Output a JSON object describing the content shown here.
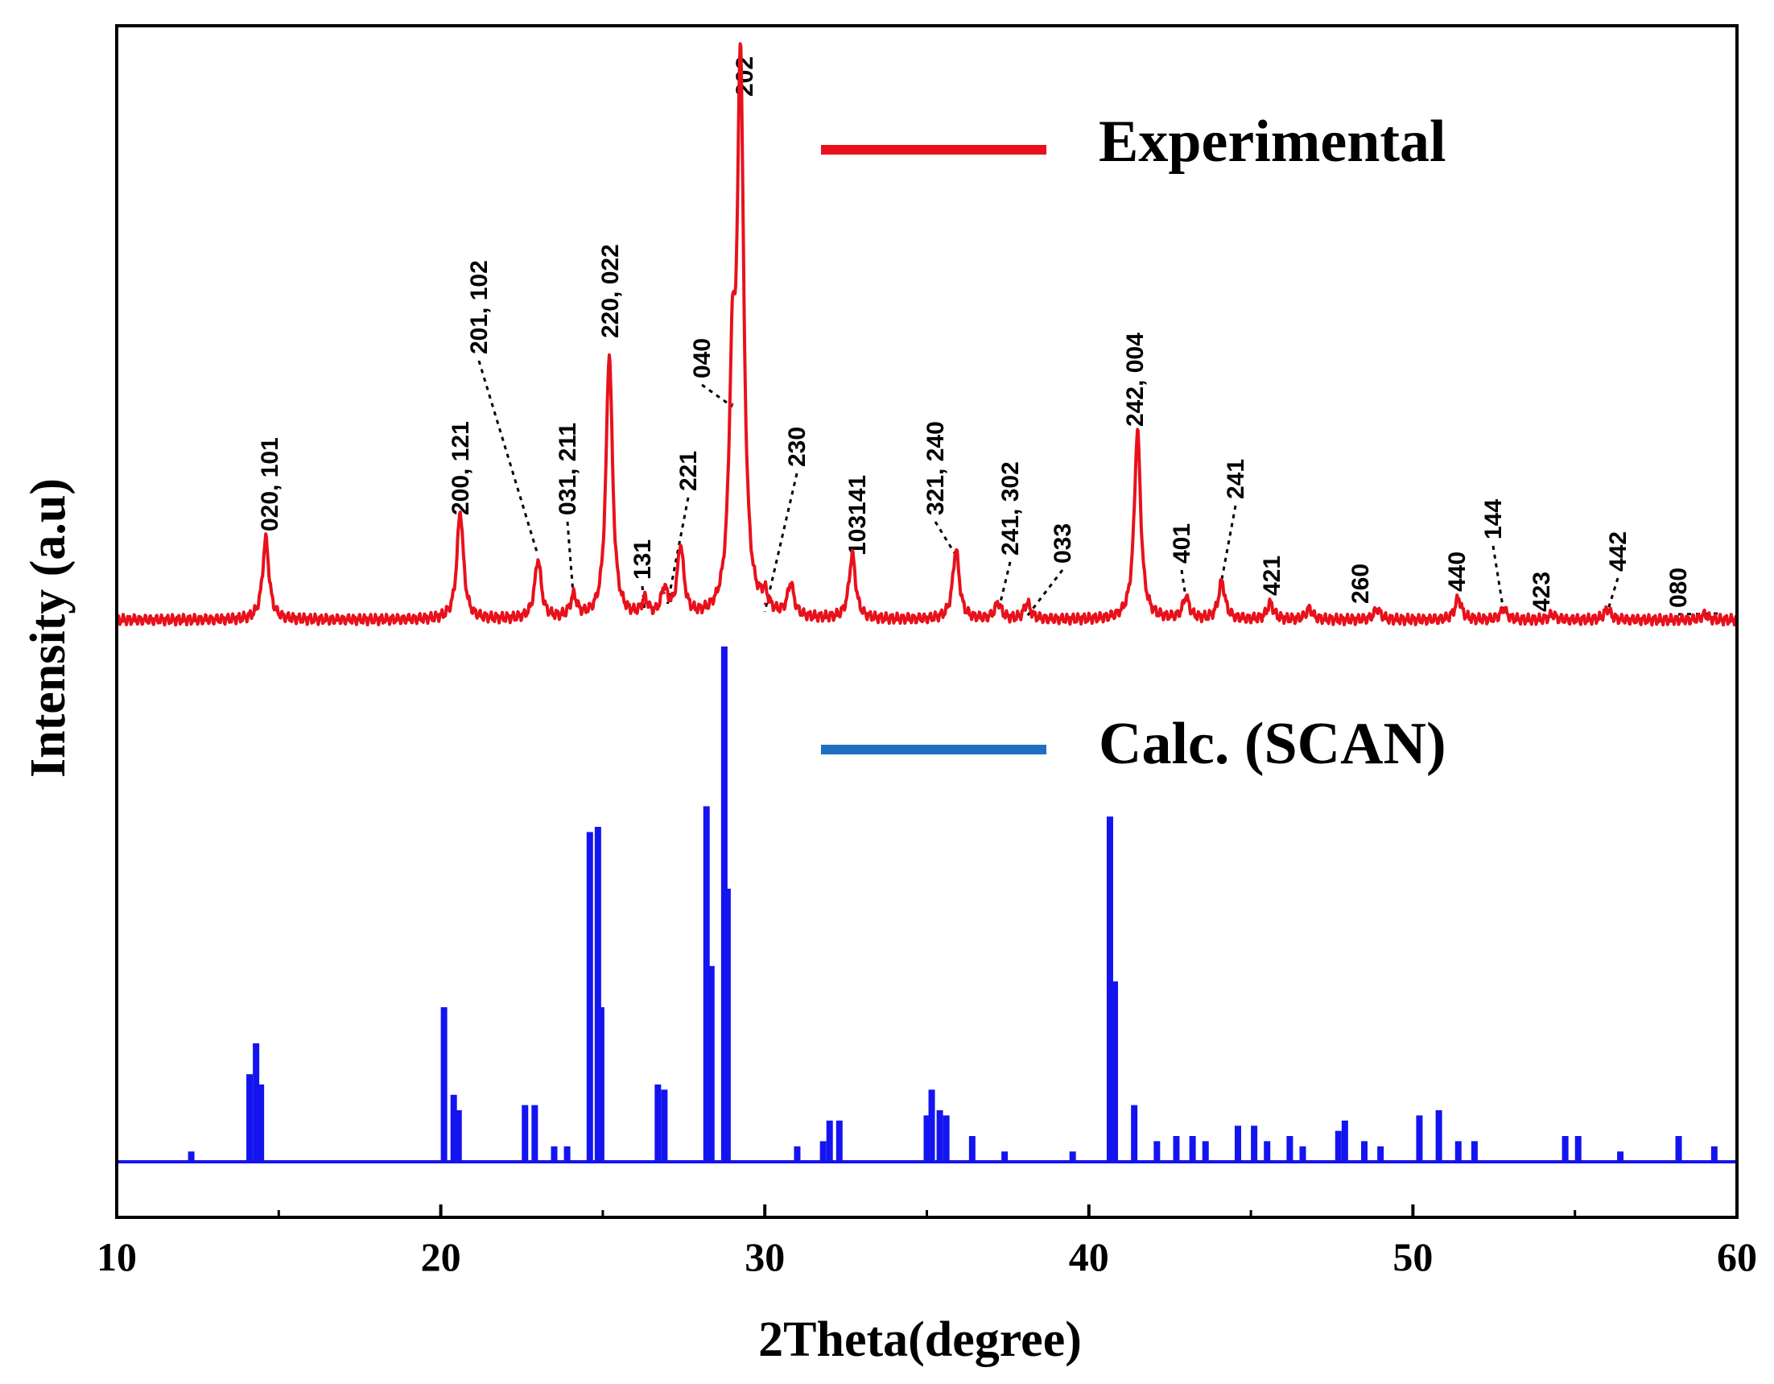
{
  "chart_data": {
    "type": "line",
    "xlabel": "2Theta(degree)",
    "ylabel": "Intensity (a.u)",
    "xlim": [
      10,
      60
    ],
    "xticks": [
      10,
      20,
      30,
      40,
      50,
      60
    ],
    "xtick_labels": [
      "10",
      "20",
      "30",
      "40",
      "50",
      "60"
    ],
    "yticks_shown": false,
    "legend_position": "upper-right",
    "series": [
      {
        "name": "Experimental",
        "color": "#e8111b",
        "style": "continuous-profile",
        "relative_intensity_range": [
          0,
          100
        ],
        "peaks": [
          {
            "x": 14.6,
            "y": 15
          },
          {
            "x": 20.6,
            "y": 20
          },
          {
            "x": 23.0,
            "y": 11
          },
          {
            "x": 24.1,
            "y": 4
          },
          {
            "x": 25.2,
            "y": 49
          },
          {
            "x": 26.3,
            "y": 3
          },
          {
            "x": 26.9,
            "y": 5
          },
          {
            "x": 27.4,
            "y": 13
          },
          {
            "x": 29.0,
            "y": 40
          },
          {
            "x": 29.25,
            "y": 100
          },
          {
            "x": 30.0,
            "y": 3
          },
          {
            "x": 30.8,
            "y": 6
          },
          {
            "x": 32.7,
            "y": 12
          },
          {
            "x": 35.9,
            "y": 13
          },
          {
            "x": 37.2,
            "y": 3
          },
          {
            "x": 38.1,
            "y": 3
          },
          {
            "x": 41.5,
            "y": 35
          },
          {
            "x": 43.0,
            "y": 4
          },
          {
            "x": 44.1,
            "y": 7
          },
          {
            "x": 45.6,
            "y": 3
          },
          {
            "x": 46.8,
            "y": 2
          },
          {
            "x": 48.9,
            "y": 2
          },
          {
            "x": 51.4,
            "y": 4
          },
          {
            "x": 52.8,
            "y": 2
          },
          {
            "x": 54.3,
            "y": 1
          },
          {
            "x": 56.0,
            "y": 2
          },
          {
            "x": 59.0,
            "y": 1
          }
        ],
        "hkl_labels": [
          "020, 101",
          "200, 121",
          "201, 102",
          "031, 211",
          "220, 022",
          "131",
          "221",
          "040",
          "202",
          "230",
          "103141",
          "321, 240",
          "241, 302",
          "033",
          "242, 004",
          "401",
          "241",
          "421",
          "260",
          "440",
          "144",
          "423",
          "442",
          "080"
        ]
      },
      {
        "name": "Calc. (SCAN)",
        "color": "#1414f0",
        "style": "stick-pattern",
        "relative_intensity_range": [
          0,
          100
        ],
        "peaks": [
          {
            "x": 12.3,
            "y": 2
          },
          {
            "x": 14.1,
            "y": 17
          },
          {
            "x": 14.3,
            "y": 23
          },
          {
            "x": 14.45,
            "y": 15
          },
          {
            "x": 20.1,
            "y": 30
          },
          {
            "x": 20.4,
            "y": 13
          },
          {
            "x": 20.55,
            "y": 10
          },
          {
            "x": 22.6,
            "y": 11
          },
          {
            "x": 22.9,
            "y": 11
          },
          {
            "x": 23.5,
            "y": 3
          },
          {
            "x": 23.9,
            "y": 3
          },
          {
            "x": 24.6,
            "y": 64
          },
          {
            "x": 24.85,
            "y": 65
          },
          {
            "x": 24.95,
            "y": 30
          },
          {
            "x": 26.7,
            "y": 15
          },
          {
            "x": 26.9,
            "y": 14
          },
          {
            "x": 28.2,
            "y": 69
          },
          {
            "x": 28.35,
            "y": 38
          },
          {
            "x": 28.75,
            "y": 100
          },
          {
            "x": 28.85,
            "y": 53
          },
          {
            "x": 31.0,
            "y": 3
          },
          {
            "x": 31.8,
            "y": 4
          },
          {
            "x": 32.0,
            "y": 8
          },
          {
            "x": 32.3,
            "y": 8
          },
          {
            "x": 35.0,
            "y": 9
          },
          {
            "x": 35.15,
            "y": 14
          },
          {
            "x": 35.4,
            "y": 10
          },
          {
            "x": 35.6,
            "y": 9
          },
          {
            "x": 36.4,
            "y": 5
          },
          {
            "x": 37.4,
            "y": 2
          },
          {
            "x": 39.5,
            "y": 2
          },
          {
            "x": 40.65,
            "y": 67
          },
          {
            "x": 40.8,
            "y": 35
          },
          {
            "x": 41.4,
            "y": 11
          },
          {
            "x": 42.1,
            "y": 4
          },
          {
            "x": 42.7,
            "y": 5
          },
          {
            "x": 43.2,
            "y": 5
          },
          {
            "x": 43.6,
            "y": 4
          },
          {
            "x": 44.6,
            "y": 7
          },
          {
            "x": 45.1,
            "y": 7
          },
          {
            "x": 45.5,
            "y": 4
          },
          {
            "x": 46.2,
            "y": 5
          },
          {
            "x": 46.6,
            "y": 3
          },
          {
            "x": 47.7,
            "y": 6
          },
          {
            "x": 47.9,
            "y": 8
          },
          {
            "x": 48.5,
            "y": 4
          },
          {
            "x": 49.0,
            "y": 3
          },
          {
            "x": 50.2,
            "y": 9
          },
          {
            "x": 50.8,
            "y": 10
          },
          {
            "x": 51.4,
            "y": 4
          },
          {
            "x": 51.9,
            "y": 4
          },
          {
            "x": 54.7,
            "y": 5
          },
          {
            "x": 55.1,
            "y": 5
          },
          {
            "x": 56.4,
            "y": 2
          },
          {
            "x": 58.2,
            "y": 5
          },
          {
            "x": 59.3,
            "y": 3
          }
        ]
      }
    ]
  }
}
